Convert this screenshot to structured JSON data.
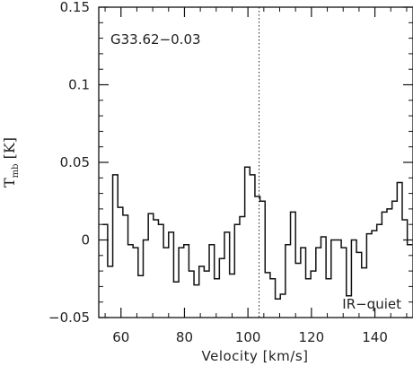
{
  "chart_data": {
    "type": "line",
    "style": "step",
    "xlabel": "Velocity [km/s]",
    "ylabel": {
      "main": "T",
      "subscript": "mb",
      "unit": " [K]"
    },
    "xlim": [
      53,
      152
    ],
    "ylim": [
      -0.05,
      0.15
    ],
    "xticks": [
      60,
      80,
      100,
      120,
      140
    ],
    "yticks": [
      -0.05,
      0,
      0.05,
      0.1,
      0.15
    ],
    "ytick_labels": [
      "−0.05",
      "0",
      "0.05",
      "0.1",
      "0.15"
    ],
    "grid": false,
    "annotations": [
      {
        "text": "G33.62−0.03",
        "position": "top-left"
      },
      {
        "text": "IR−quiet",
        "position": "bottom-right"
      }
    ],
    "vline_x": 103.5,
    "series": [
      {
        "x": [
          55,
          56.6,
          58.2,
          59.8,
          61.4,
          63,
          64.6,
          66.2,
          67.8,
          69.4,
          71,
          72.6,
          74.2,
          75.8,
          77.4,
          79,
          80.6,
          82.2,
          83.8,
          85.4,
          87,
          88.6,
          90.2,
          91.8,
          93.4,
          95,
          96.6,
          98.2,
          99.8,
          101.4,
          103,
          104.6,
          106.2,
          107.8,
          109.4,
          111,
          112.6,
          114.2,
          115.8,
          117.4,
          119,
          120.6,
          122.2,
          123.8,
          125.4,
          127,
          128.6,
          130.2,
          131.8,
          133.4,
          135,
          136.6,
          138.2,
          139.8,
          141.4,
          143,
          144.6,
          146.2,
          147.8,
          149.4,
          151
        ],
        "y": [
          0.01,
          -0.017,
          0.042,
          0.021,
          0.016,
          -0.003,
          -0.005,
          -0.023,
          0.0,
          0.017,
          0.013,
          0.01,
          -0.005,
          0.005,
          -0.027,
          -0.005,
          -0.003,
          -0.02,
          -0.029,
          -0.017,
          -0.02,
          -0.003,
          -0.025,
          -0.012,
          0.005,
          -0.022,
          0.01,
          0.015,
          0.047,
          0.042,
          0.028,
          0.025,
          -0.021,
          -0.025,
          -0.038,
          -0.035,
          -0.003,
          0.018,
          -0.015,
          -0.005,
          -0.025,
          -0.02,
          -0.005,
          0.002,
          -0.025,
          0.0,
          0.0,
          -0.005,
          -0.036,
          0.0,
          -0.008,
          -0.018,
          0.004,
          0.006,
          0.01,
          0.018,
          0.02,
          0.025,
          0.037,
          0.013,
          -0.003
        ]
      }
    ]
  }
}
